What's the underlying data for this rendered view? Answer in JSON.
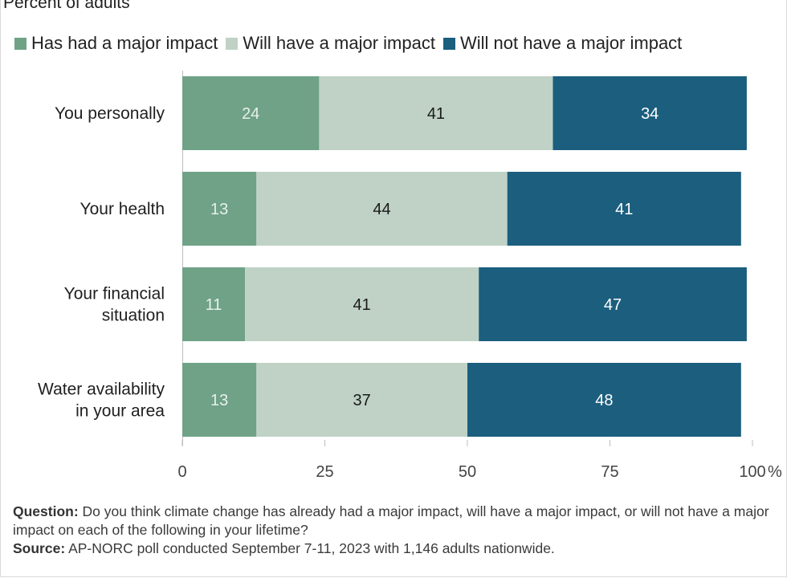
{
  "chart_data": {
    "type": "bar",
    "orientation": "horizontal",
    "stacked": true,
    "subtitle": "Percent of adults",
    "categories": [
      [
        "You personally"
      ],
      [
        "Your health"
      ],
      [
        "Your financial",
        "situation"
      ],
      [
        "Water availability",
        "in your area"
      ]
    ],
    "series": [
      {
        "name": "Has had a major impact",
        "color": "#6fa287",
        "label_color": "#e8f0ea",
        "values": [
          24,
          13,
          11,
          13
        ]
      },
      {
        "name": "Will have a major impact",
        "color": "#bfd2c5",
        "label_color": "#1a1a1a",
        "values": [
          41,
          44,
          41,
          37
        ]
      },
      {
        "name": "Will not have a major impact",
        "color": "#1b5e7e",
        "label_color": "#ffffff",
        "values": [
          34,
          41,
          47,
          48
        ]
      }
    ],
    "xlim": [
      0,
      100
    ],
    "xticks": [
      "0",
      "25",
      "50",
      "75",
      "100"
    ],
    "x_unit": "%",
    "legend_position": "top",
    "grid": false
  },
  "notes": {
    "question_label": "Question:",
    "question_text": "Do you think climate change has already had a major impact, will have a major impact, or will not have a major impact on each of the following in your lifetime?",
    "source_label": "Source:",
    "source_text": "AP-NORC poll conducted September 7-11, 2023 with 1,146 adults nationwide."
  }
}
